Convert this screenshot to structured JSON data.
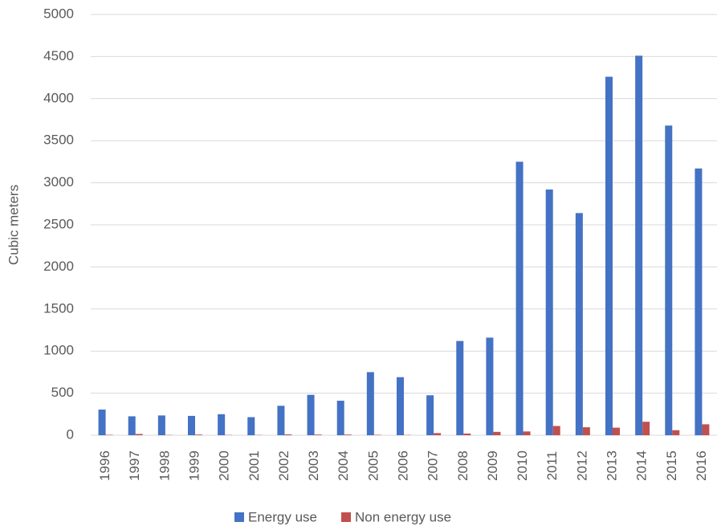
{
  "chart_data": {
    "type": "bar",
    "y_label": "Cubic meters",
    "categories": [
      "1996",
      "1997",
      "1998",
      "1999",
      "2000",
      "2001",
      "2002",
      "2003",
      "2004",
      "2005",
      "2006",
      "2007",
      "2008",
      "2009",
      "2010",
      "2011",
      "2012",
      "2013",
      "2014",
      "2015",
      "2016"
    ],
    "series": [
      {
        "name": "Energy use",
        "color": "#4472c4",
        "values": [
          305,
          225,
          235,
          230,
          250,
          215,
          350,
          480,
          410,
          750,
          690,
          475,
          1120,
          1160,
          3250,
          2920,
          2640,
          4260,
          4510,
          3680,
          3170
        ]
      },
      {
        "name": "Non energy use",
        "color": "#c0504d",
        "values": [
          5,
          15,
          3,
          8,
          3,
          3,
          10,
          8,
          8,
          5,
          3,
          25,
          20,
          40,
          45,
          110,
          95,
          90,
          160,
          60,
          130
        ]
      }
    ],
    "ylim": [
      0,
      5000
    ],
    "yticks": [
      0,
      500,
      1000,
      1500,
      2000,
      2500,
      3000,
      3500,
      4000,
      4500,
      5000
    ],
    "grid": true,
    "legend": "bottom"
  }
}
